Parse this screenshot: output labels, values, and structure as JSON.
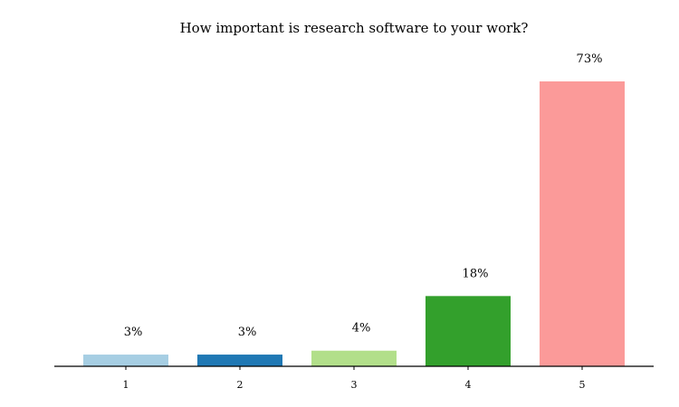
{
  "chart_data": {
    "type": "bar",
    "title": "How important is research software to your work?",
    "categories": [
      "1",
      "2",
      "3",
      "4",
      "5"
    ],
    "values": [
      3,
      3,
      4,
      18,
      73
    ],
    "value_labels": [
      "3%",
      "3%",
      "4%",
      "18%",
      "73%"
    ],
    "colors": [
      "#a6cee3",
      "#1f78b4",
      "#b2df8a",
      "#33a02c",
      "#fb9a99"
    ],
    "xlabel": "",
    "ylabel": "",
    "ylim": [
      0,
      73
    ],
    "y_axis_visible": false,
    "grid": false,
    "legend": "none"
  }
}
